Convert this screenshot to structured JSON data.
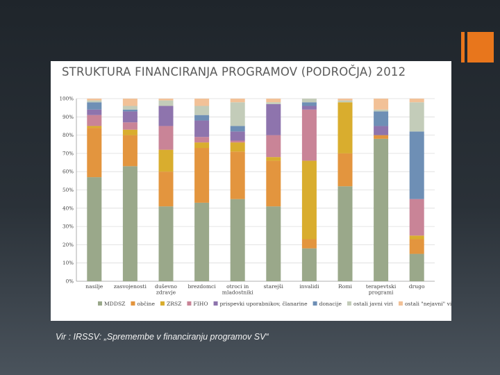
{
  "slide": {
    "source": "Vir : IRSSV: „Spremembe v financiranju programov SV“",
    "accent_color": "#e8761c"
  },
  "chart_data": {
    "type": "bar",
    "stacked": true,
    "normalized": true,
    "title": "STRUKTURA FINANCIRANJA PROGRAMOV (PODROČJA) 2012",
    "categories": [
      "nasilje",
      "zasvojenosti",
      "duševno zdravje",
      "brezdomci",
      "otroci in mladostniki",
      "starejši",
      "invalidi",
      "Romi",
      "terapevtski programi",
      "drugo"
    ],
    "y_ticks": [
      "0%",
      "10%",
      "20%",
      "30%",
      "40%",
      "50%",
      "60%",
      "70%",
      "80%",
      "90%",
      "100%"
    ],
    "ylim": [
      0,
      100
    ],
    "grid": true,
    "legend_position": "bottom",
    "series": [
      {
        "name": "MDDSZ",
        "color": "#9aa88a",
        "values": [
          57,
          63,
          41,
          43,
          45,
          41,
          18,
          52,
          78,
          15
        ]
      },
      {
        "name": "občine",
        "color": "#e3953e",
        "values": [
          27,
          17,
          19,
          30,
          26,
          25,
          5,
          18,
          2,
          8
        ]
      },
      {
        "name": "ZRSZ",
        "color": "#d9ad2e",
        "values": [
          1,
          3,
          12,
          3,
          5,
          2,
          43,
          28,
          0,
          2
        ]
      },
      {
        "name": "FIHO",
        "color": "#c98497",
        "values": [
          6,
          4,
          13,
          3,
          1,
          12,
          28,
          0,
          0,
          20
        ]
      },
      {
        "name": "prispevki uporabnikov, članarine",
        "color": "#8e74ad",
        "values": [
          3,
          6,
          11,
          9,
          5,
          17,
          2,
          0,
          5,
          0
        ]
      },
      {
        "name": "donacije",
        "color": "#6e8fb5",
        "values": [
          4,
          1,
          0,
          3,
          3,
          0,
          2,
          0,
          8,
          37
        ]
      },
      {
        "name": "ostali javni viri",
        "color": "#c3ccb9",
        "values": [
          1,
          2,
          3,
          5,
          13,
          1,
          2,
          1,
          1,
          16
        ]
      },
      {
        "name": "ostali \"nejavni\" viri",
        "color": "#f2c197",
        "values": [
          1,
          4,
          1,
          4,
          2,
          2,
          0,
          1,
          6,
          2
        ]
      }
    ]
  }
}
